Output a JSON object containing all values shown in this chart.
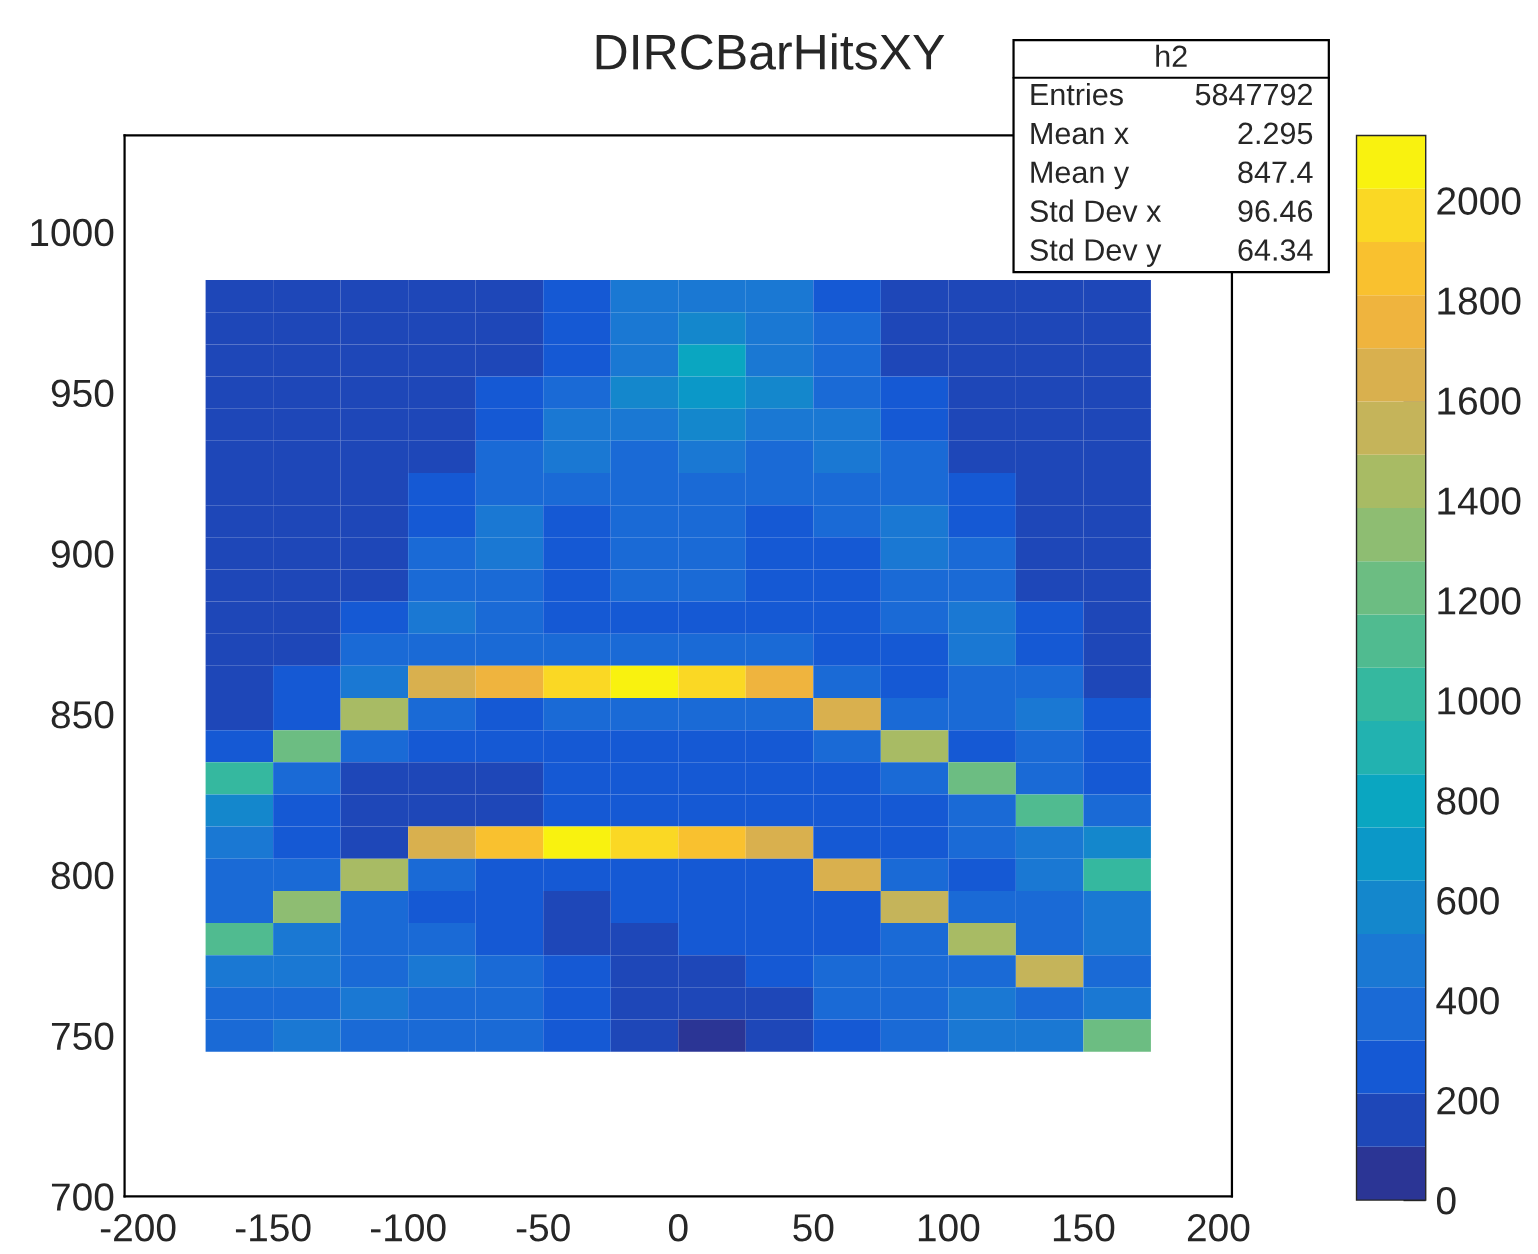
{
  "chart_data": {
    "type": "heatmap",
    "title": "DIRCBarHitsXY",
    "annotations": [
      "h2",
      "Entries",
      "5847792",
      "Mean x",
      "2.295",
      "Mean y",
      "847.4",
      "Std Dev x",
      "96.46",
      "Std Dev y",
      "64.34"
    ],
    "x": [
      -162.5,
      -137.5,
      -112.5,
      -87.5,
      -62.5,
      -37.5,
      -12.5,
      12.5,
      37.5,
      62.5,
      87.5,
      112.5,
      137.5,
      162.5
    ],
    "y": [
      980,
      970,
      960,
      950,
      940,
      930,
      920,
      910,
      900,
      890,
      880,
      870,
      860,
      850,
      840,
      830,
      820,
      810,
      800,
      790,
      780,
      770,
      760,
      750
    ],
    "cells": [
      [
        200,
        200,
        200,
        200,
        200,
        300,
        450,
        500,
        450,
        300,
        200,
        200,
        200,
        200
      ],
      [
        200,
        200,
        200,
        200,
        200,
        300,
        450,
        600,
        450,
        350,
        200,
        200,
        200,
        200
      ],
      [
        200,
        200,
        200,
        200,
        200,
        300,
        500,
        800,
        500,
        350,
        200,
        200,
        200,
        200
      ],
      [
        200,
        200,
        200,
        200,
        250,
        350,
        550,
        700,
        550,
        350,
        250,
        200,
        200,
        200
      ],
      [
        200,
        200,
        200,
        200,
        300,
        450,
        500,
        550,
        500,
        450,
        250,
        200,
        200,
        200
      ],
      [
        200,
        200,
        200,
        200,
        350,
        450,
        400,
        450,
        400,
        450,
        350,
        200,
        200,
        200
      ],
      [
        200,
        200,
        200,
        250,
        400,
        350,
        400,
        400,
        350,
        400,
        400,
        250,
        200,
        200
      ],
      [
        150,
        150,
        150,
        300,
        450,
        300,
        350,
        350,
        300,
        350,
        450,
        300,
        150,
        150
      ],
      [
        150,
        150,
        150,
        350,
        450,
        300,
        350,
        350,
        300,
        300,
        450,
        350,
        150,
        150
      ],
      [
        150,
        150,
        200,
        400,
        400,
        300,
        350,
        350,
        300,
        300,
        400,
        400,
        200,
        150
      ],
      [
        150,
        150,
        300,
        450,
        350,
        300,
        300,
        300,
        300,
        300,
        350,
        450,
        250,
        150
      ],
      [
        150,
        200,
        400,
        400,
        350,
        400,
        400,
        400,
        350,
        300,
        300,
        450,
        300,
        150
      ],
      [
        150,
        250,
        450,
        1600,
        1800,
        2000,
        2100,
        2000,
        1800,
        400,
        300,
        400,
        400,
        200
      ],
      [
        200,
        300,
        1400,
        400,
        300,
        350,
        350,
        350,
        350,
        1600,
        350,
        350,
        450,
        250
      ],
      [
        300,
        1200,
        350,
        300,
        250,
        300,
        300,
        300,
        300,
        350,
        1400,
        300,
        400,
        300
      ],
      [
        1000,
        350,
        200,
        200,
        200,
        300,
        300,
        300,
        300,
        300,
        400,
        1200,
        400,
        300
      ],
      [
        600,
        250,
        200,
        150,
        200,
        300,
        300,
        300,
        300,
        300,
        300,
        400,
        1100,
        400
      ],
      [
        450,
        300,
        200,
        1700,
        1900,
        2100,
        2000,
        1900,
        1700,
        300,
        300,
        350,
        500,
        600
      ],
      [
        350,
        350,
        1400,
        350,
        250,
        250,
        300,
        300,
        300,
        1600,
        350,
        300,
        450,
        1000
      ],
      [
        400,
        1300,
        400,
        300,
        250,
        200,
        250,
        300,
        300,
        300,
        1500,
        350,
        400,
        500
      ],
      [
        1100,
        450,
        400,
        350,
        300,
        200,
        200,
        250,
        300,
        300,
        400,
        1400,
        400,
        450
      ],
      [
        500,
        450,
        350,
        450,
        350,
        250,
        150,
        150,
        250,
        350,
        350,
        400,
        1500,
        400
      ],
      [
        400,
        350,
        450,
        400,
        400,
        300,
        150,
        150,
        200,
        350,
        400,
        450,
        400,
        500
      ],
      [
        400,
        450,
        400,
        400,
        350,
        300,
        150,
        100,
        200,
        300,
        400,
        450,
        450,
        1200
      ]
    ],
    "colors": [
      "#2b3595",
      "#1e47b8",
      "#1559d4",
      "#1a6ad6",
      "#1a78d3",
      "#1487cc",
      "#0b98c8",
      "#0aa6c1",
      "#22b2b0",
      "#35b89f",
      "#50bb90",
      "#6cbd82",
      "#8ebd72",
      "#a8bb64",
      "#c5b45a",
      "#d9b04e",
      "#efb43e",
      "#f9c12f",
      "#fad824",
      "#f9f20f"
    ],
    "clim": [
      0,
      2130
    ],
    "cticks": [
      0,
      200,
      400,
      600,
      800,
      1000,
      1200,
      1400,
      1600,
      1800,
      2000
    ],
    "xlim": [
      -205,
      205
    ],
    "xticks": [
      -200,
      -150,
      -100,
      -50,
      0,
      50,
      100,
      150,
      200
    ],
    "ylim": [
      700,
      1030
    ],
    "yticks": [
      700,
      750,
      800,
      850,
      900,
      950,
      1000
    ],
    "grid": false
  }
}
